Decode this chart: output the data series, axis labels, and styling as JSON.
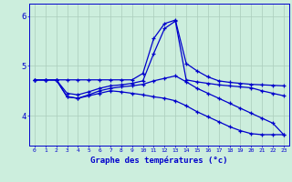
{
  "xlabel": "Graphe des températures (°c)",
  "background_color": "#cceedd",
  "grid_color": "#aaccbb",
  "line_color": "#0000cc",
  "xlim": [
    -0.5,
    23.5
  ],
  "ylim": [
    3.4,
    6.25
  ],
  "yticks": [
    4,
    5,
    6
  ],
  "ytick_labels": [
    "4",
    "5",
    "6"
  ],
  "xticks": [
    0,
    1,
    2,
    3,
    4,
    5,
    6,
    7,
    8,
    9,
    10,
    11,
    12,
    13,
    14,
    15,
    16,
    17,
    18,
    19,
    20,
    21,
    22,
    23
  ],
  "series": [
    {
      "x": [
        0,
        1,
        2,
        3,
        4,
        5,
        6,
        7,
        8,
        9,
        10,
        11,
        12,
        13,
        14,
        15,
        16,
        17,
        18,
        19,
        20,
        21,
        22,
        23
      ],
      "y": [
        4.72,
        4.72,
        4.72,
        4.72,
        4.72,
        4.72,
        4.72,
        4.72,
        4.72,
        4.72,
        4.85,
        5.55,
        5.85,
        5.92,
        5.05,
        4.9,
        4.78,
        4.7,
        4.67,
        4.65,
        4.63,
        4.62,
        4.61,
        4.6
      ]
    },
    {
      "x": [
        0,
        1,
        2,
        3,
        4,
        5,
        6,
        7,
        8,
        9,
        10,
        11,
        12,
        13,
        14,
        15,
        16,
        17,
        18,
        19,
        20,
        21,
        22,
        23
      ],
      "y": [
        4.72,
        4.72,
        4.72,
        4.45,
        4.42,
        4.48,
        4.55,
        4.6,
        4.62,
        4.65,
        4.7,
        5.25,
        5.75,
        5.9,
        4.72,
        4.68,
        4.65,
        4.62,
        4.6,
        4.58,
        4.56,
        4.5,
        4.45,
        4.4
      ]
    },
    {
      "x": [
        0,
        1,
        2,
        3,
        4,
        5,
        6,
        7,
        8,
        9,
        10,
        11,
        12,
        13,
        14,
        15,
        16,
        17,
        18,
        19,
        20,
        21,
        22,
        23
      ],
      "y": [
        4.72,
        4.72,
        4.72,
        4.38,
        4.35,
        4.42,
        4.5,
        4.55,
        4.58,
        4.6,
        4.63,
        4.7,
        4.75,
        4.8,
        4.68,
        4.55,
        4.45,
        4.35,
        4.25,
        4.15,
        4.05,
        3.95,
        3.85,
        3.62
      ]
    },
    {
      "x": [
        0,
        1,
        2,
        3,
        4,
        5,
        6,
        7,
        8,
        9,
        10,
        11,
        12,
        13,
        14,
        15,
        16,
        17,
        18,
        19,
        20,
        21,
        22,
        23
      ],
      "y": [
        4.72,
        4.72,
        4.72,
        4.38,
        4.35,
        4.4,
        4.45,
        4.5,
        4.48,
        4.45,
        4.42,
        4.38,
        4.35,
        4.3,
        4.2,
        4.08,
        3.98,
        3.88,
        3.78,
        3.7,
        3.64,
        3.62,
        3.62,
        3.62
      ]
    }
  ]
}
